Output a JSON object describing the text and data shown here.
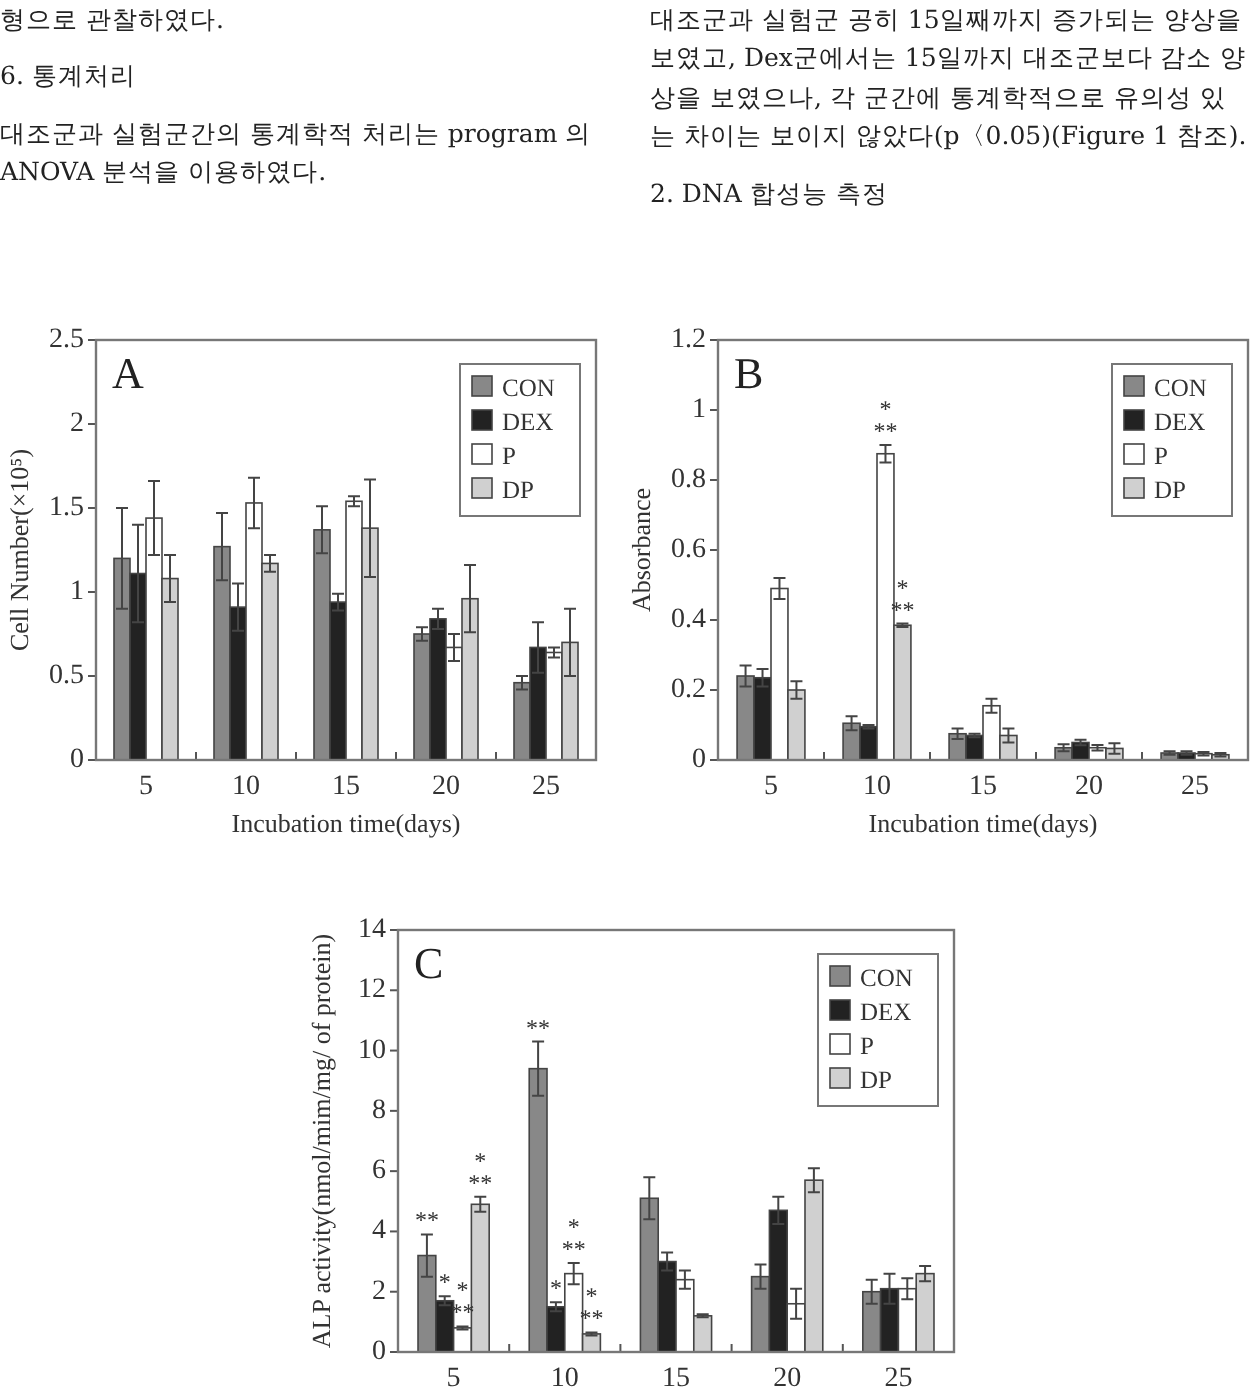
{
  "chart_data": [
    {
      "type": "other",
      "annotations": [
        "형으로 관찰하였다.",
        "6. 통계처리",
        "대조군과 실험군간의 통계학적 처리는 program 의 ANOVA 분석을 이용하였다."
      ]
    },
    {
      "type": "other",
      "annotations": [
        "대조군과 실험군 공히 15일째까지 증가되는 양상을 보였고, Dex군에서는 15일까지 대조군보다 감소 양상을 보였으나, 각 군간에 통계학적으로 유의성 있는 차이는 보이지 않았다(p〈0.05)(Figure 1 참조).",
        "2. DNA 합성능 측정"
      ]
    },
    {
      "type": "bar",
      "title": "A",
      "xlabel": "Incubation time(days)",
      "ylabel": "Cell Number(×10⁵)",
      "categories": [
        "5",
        "10",
        "15",
        "20",
        "25"
      ],
      "ylim": [
        0,
        2.5
      ],
      "yticks": [
        0,
        0.5,
        1,
        1.5,
        2,
        2.5
      ],
      "legend": "top right",
      "series": [
        {
          "name": "CON",
          "color": "#888888",
          "values": [
            1.2,
            1.27,
            1.37,
            0.75,
            0.46
          ],
          "errors": [
            0.3,
            0.2,
            0.14,
            0.04,
            0.04
          ]
        },
        {
          "name": "DEX",
          "color": "#222222",
          "values": [
            1.11,
            0.91,
            0.94,
            0.84,
            0.67
          ],
          "errors": [
            0.29,
            0.14,
            0.05,
            0.06,
            0.15
          ]
        },
        {
          "name": "P",
          "color": "#ffffff",
          "values": [
            1.44,
            1.53,
            1.54,
            0.67,
            0.64
          ],
          "errors": [
            0.22,
            0.15,
            0.03,
            0.08,
            0.03
          ]
        },
        {
          "name": "DP",
          "color": "#d0d0d0",
          "values": [
            1.08,
            1.17,
            1.38,
            0.96,
            0.7
          ],
          "errors": [
            0.14,
            0.05,
            0.29,
            0.2,
            0.2
          ]
        }
      ]
    },
    {
      "type": "bar",
      "title": "B",
      "xlabel": "Incubation time(days)",
      "ylabel": "Absorbance",
      "categories": [
        "5",
        "10",
        "15",
        "20",
        "25"
      ],
      "ylim": [
        0,
        1.2
      ],
      "yticks": [
        0,
        0.2,
        0.4,
        0.6,
        0.8,
        1,
        1.2
      ],
      "legend": "top right",
      "series": [
        {
          "name": "CON",
          "color": "#888888",
          "values": [
            0.24,
            0.105,
            0.075,
            0.035,
            0.02
          ],
          "errors": [
            0.03,
            0.02,
            0.015,
            0.01,
            0.005
          ]
        },
        {
          "name": "DEX",
          "color": "#222222",
          "values": [
            0.235,
            0.095,
            0.07,
            0.05,
            0.02
          ],
          "errors": [
            0.025,
            0.005,
            0.005,
            0.008,
            0.005
          ]
        },
        {
          "name": "P",
          "color": "#ffffff",
          "values": [
            0.49,
            0.875,
            0.155,
            0.035,
            0.018
          ],
          "errors": [
            0.03,
            0.025,
            0.02,
            0.008,
            0.005
          ]
        },
        {
          "name": "DP",
          "color": "#d0d0d0",
          "values": [
            0.2,
            0.385,
            0.07,
            0.033,
            0.015
          ],
          "errors": [
            0.025,
            0.005,
            0.02,
            0.015,
            0.005
          ]
        }
      ],
      "annotations": [
        {
          "text": "**",
          "x": "10",
          "y": 0.9
        },
        {
          "text": "*",
          "x": "10",
          "y": 0.9
        },
        {
          "text": "**",
          "x": "10",
          "y": 0.39
        },
        {
          "text": "*",
          "x": "10",
          "y": 0.39
        }
      ]
    },
    {
      "type": "bar",
      "title": "C",
      "ylabel": "ALP activity(nmol/mim/mg/ of protein)",
      "categories": [
        "5",
        "10",
        "15",
        "20",
        "25"
      ],
      "ylim": [
        0,
        14
      ],
      "yticks": [
        0,
        2,
        4,
        6,
        8,
        10,
        12,
        14
      ],
      "legend": "top right",
      "series": [
        {
          "name": "CON",
          "color": "#888888",
          "values": [
            3.2,
            9.4,
            5.1,
            2.5,
            2.0
          ],
          "errors": [
            0.7,
            0.9,
            0.7,
            0.4,
            0.4
          ]
        },
        {
          "name": "DEX",
          "color": "#222222",
          "values": [
            1.7,
            1.5,
            3.0,
            4.7,
            2.1
          ],
          "errors": [
            0.15,
            0.15,
            0.3,
            0.45,
            0.5
          ]
        },
        {
          "name": "P",
          "color": "#ffffff",
          "values": [
            0.8,
            2.6,
            2.4,
            1.6,
            2.1
          ],
          "errors": [
            0.05,
            0.35,
            0.3,
            0.5,
            0.35
          ]
        },
        {
          "name": "DP",
          "color": "#d0d0d0",
          "values": [
            4.9,
            0.6,
            1.2,
            5.7,
            2.6
          ],
          "errors": [
            0.25,
            0.05,
            0.05,
            0.4,
            0.25
          ]
        }
      ],
      "annotations": [
        "**",
        {
          "text": "*",
          "x": "5",
          "y": 1.85
        },
        {
          "text": "**",
          "x": "5",
          "y": 0.85
        },
        {
          "text": "*",
          "x": "5",
          "y": 0.85
        },
        "**",
        "*",
        "**",
        {
          "text": "*",
          "x": "10",
          "y": 1.65
        },
        {
          "text": "**",
          "x": "10",
          "y": 2.95
        },
        {
          "text": "*",
          "x": "10",
          "y": 2.95
        },
        {
          "text": "**",
          "x": "10",
          "y": 0.65
        },
        {
          "text": "*",
          "x": "10",
          "y": 0.65
        }
      ]
    }
  ]
}
